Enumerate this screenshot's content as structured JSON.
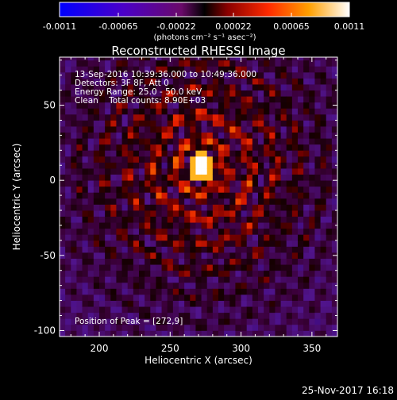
{
  "colorbar": {
    "min_label": "-0.0011",
    "ticks": [
      "-0.00065",
      "-0.00022",
      "0.00022",
      "0.00065"
    ],
    "max_label": "0.0011",
    "unit": "(photons cm⁻² s⁻¹ asec⁻²)",
    "range": [
      -0.0011,
      0.0011
    ]
  },
  "chart_data": {
    "type": "heatmap",
    "title": "Reconstructed RHESSI Image",
    "xlabel": "Heliocentric X (arcsec)",
    "ylabel": "Heliocentric Y (arcsec)",
    "xlim": [
      172,
      368
    ],
    "ylim": [
      -104,
      82
    ],
    "xticks": [
      200,
      250,
      300,
      350
    ],
    "yticks": [
      50,
      0,
      -50,
      -100
    ],
    "annotations": [
      "13-Sep-2016 10:39:36.000 to 10:49:36.000",
      "Detectors: 3F 8F, Att 0",
      "Energy Range: 25.0 - 50.0 keV",
      "Clean    Total counts: 8.90E+03"
    ],
    "peak_label": "Position of Peak = [272,9]",
    "peak": [
      272,
      9
    ],
    "colormap": "rainbow-hot"
  },
  "footer": {
    "date": "25-Nov-2017 16:18"
  }
}
